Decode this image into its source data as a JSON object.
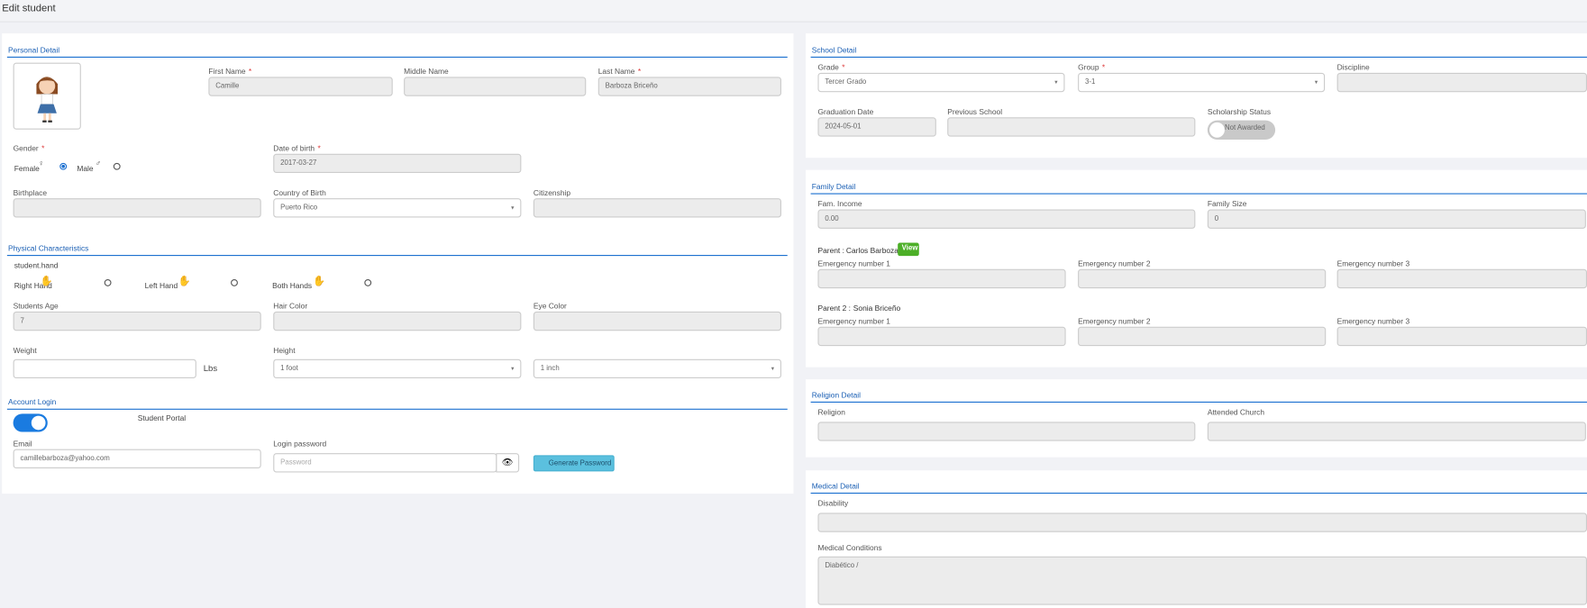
{
  "header": {
    "title": "Edit student"
  },
  "required_mark": "*",
  "personal": {
    "title": "Personal Detail",
    "first_name": {
      "label": "First Name",
      "value": "Camille"
    },
    "middle_name": {
      "label": "Middle Name"
    },
    "last_name": {
      "label": "Last Name",
      "value": "Barboza Briceño"
    },
    "gender": {
      "label": "Gender",
      "options": [
        "Female",
        "Male"
      ]
    },
    "dob": {
      "label": "Date of birth",
      "value": "2017-03-27"
    },
    "birthplace": {
      "label": "Birthplace"
    },
    "country": {
      "label": "Country of Birth",
      "value": "Puerto Rico"
    },
    "citizenship": {
      "label": "Citizenship"
    }
  },
  "physical": {
    "title": "Physical Characteristics",
    "hand_label": "student.hand",
    "hands": [
      "Right Hand",
      "Left Hand",
      "Both Hands"
    ],
    "age": {
      "label": "Students Age",
      "value": "7"
    },
    "hair": {
      "label": "Hair Color"
    },
    "eye": {
      "label": "Eye Color"
    },
    "weight": {
      "label": "Weight",
      "unit": "Lbs"
    },
    "height": {
      "label": "Height",
      "feet": "1 foot",
      "inches": "1 inch"
    }
  },
  "account": {
    "title": "Account Login",
    "portal": "Student Portal",
    "email": {
      "label": "Email",
      "value": "camillebarboza@yahoo.com"
    },
    "password": {
      "label": "Login password",
      "placeholder": "Password"
    },
    "generate": "Generate Password"
  },
  "school": {
    "title": "School Detail",
    "grade": {
      "label": "Grade",
      "value": "Tercer Grado"
    },
    "group": {
      "label": "Group",
      "value": "3-1"
    },
    "discipline": {
      "label": "Discipline"
    },
    "graduation": {
      "label": "Graduation Date",
      "value": "2024-05-01"
    },
    "previous": {
      "label": "Previous School"
    },
    "scholarship": {
      "label": "Scholarship Status",
      "value": "Not Awarded"
    }
  },
  "family": {
    "title": "Family Detail",
    "income": {
      "label": "Fam. Income",
      "value": "0.00"
    },
    "size": {
      "label": "Family Size",
      "value": "0"
    },
    "parent1": {
      "label": "Parent :",
      "name": "Carlos Barboza",
      "view": "View"
    },
    "parent2": {
      "label": "Parent 2 :",
      "name": "Sonia Briceño"
    },
    "emergency": [
      "Emergency number 1",
      "Emergency number 2",
      "Emergency number 3"
    ]
  },
  "religion": {
    "title": "Religion Detail",
    "religion": "Religion",
    "church": "Attended Church"
  },
  "medical": {
    "title": "Medical Detail",
    "disability": "Disability",
    "conditions": {
      "label": "Medical Conditions",
      "value": "Diabético /"
    }
  }
}
